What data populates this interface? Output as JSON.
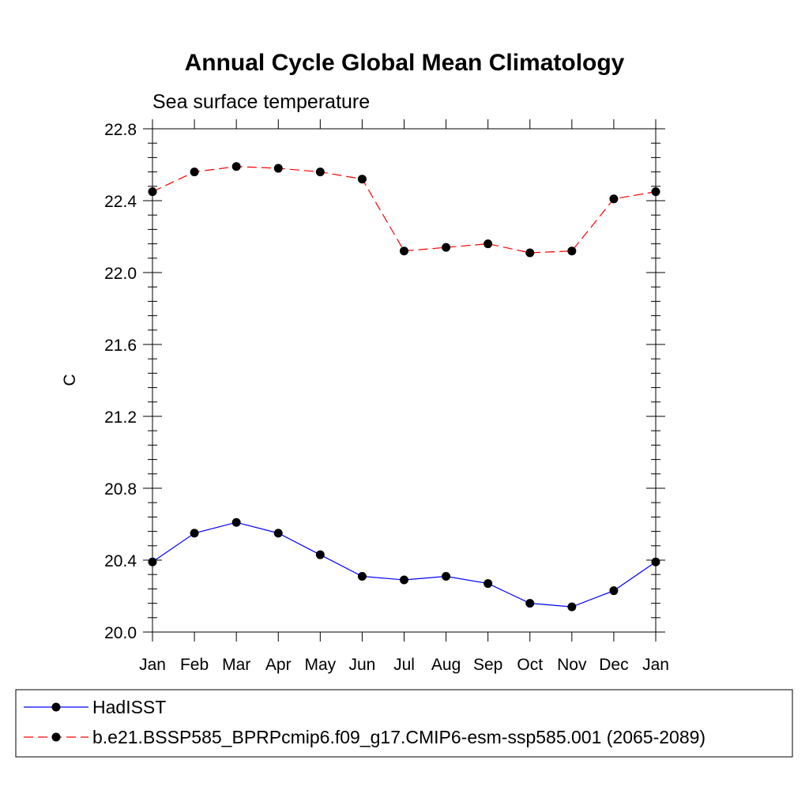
{
  "chart_data": {
    "type": "line",
    "title": "Annual Cycle Global Mean Climatology",
    "subtitle": "Sea surface temperature",
    "xlabel": "",
    "ylabel": "C",
    "ylim": [
      20.0,
      22.8
    ],
    "yticks": [
      "20.0",
      "20.4",
      "20.8",
      "21.2",
      "21.6",
      "22.0",
      "22.4",
      "22.8"
    ],
    "categories": [
      "Jan",
      "Feb",
      "Mar",
      "Apr",
      "May",
      "Jun",
      "Jul",
      "Aug",
      "Sep",
      "Oct",
      "Nov",
      "Dec",
      "Jan"
    ],
    "grid": false,
    "legend_position": "bottom",
    "series": [
      {
        "name": "HadISST",
        "color": "#0000ff",
        "dashed": false,
        "values": [
          20.39,
          20.55,
          20.61,
          20.55,
          20.43,
          20.31,
          20.29,
          20.31,
          20.27,
          20.16,
          20.14,
          20.23,
          20.39
        ]
      },
      {
        "name": "b.e21.BSSP585_BPRPcmip6.f09_g17.CMIP6-esm-ssp585.001 (2065-2089)",
        "color": "#ff0000",
        "dashed": true,
        "values": [
          22.45,
          22.56,
          22.59,
          22.58,
          22.56,
          22.52,
          22.12,
          22.14,
          22.16,
          22.11,
          22.12,
          22.41,
          22.45
        ]
      }
    ]
  }
}
